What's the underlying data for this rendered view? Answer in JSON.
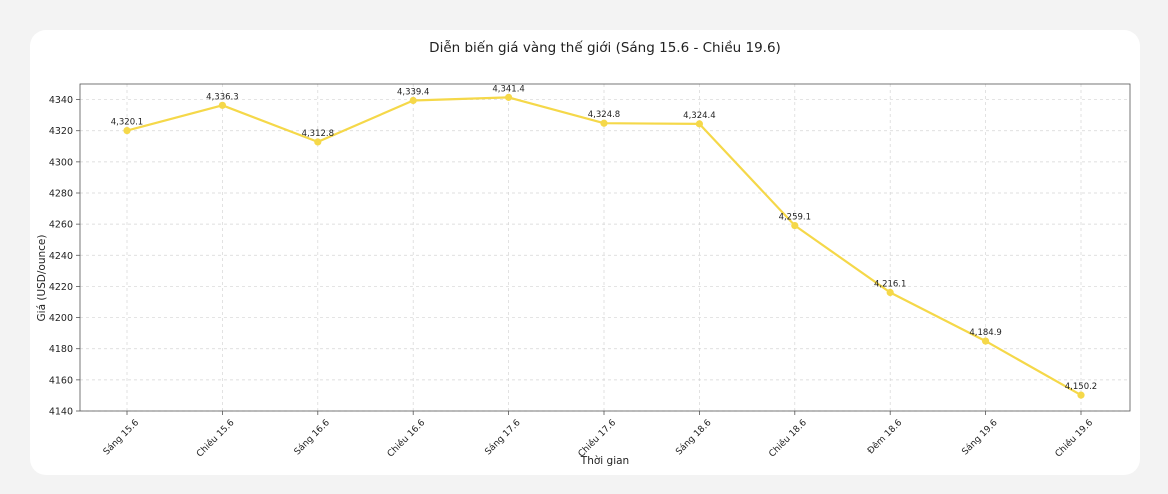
{
  "chart_data": {
    "type": "line",
    "title": "Diễn biến giá vàng thế giới (Sáng 15.6 - Chiều 19.6)",
    "xlabel": "Thời gian",
    "ylabel": "Giá (USD/ounce)",
    "categories": [
      "Sáng 15.6",
      "Chiều 15.6",
      "Sáng 16.6",
      "Chiều 16.6",
      "Sáng 17.6",
      "Chiều 17.6",
      "Sáng 18.6",
      "Chiều 18.6",
      "Đêm 18.6",
      "Sáng 19.6",
      "Chiều 19.6"
    ],
    "values": [
      4320.1,
      4336.3,
      4312.8,
      4339.4,
      4341.4,
      4324.8,
      4324.4,
      4259.1,
      4216.1,
      4184.9,
      4150.2
    ],
    "data_labels": [
      "4,320.1",
      "4,336.3",
      "4,312.8",
      "4,339.4",
      "4,341.4",
      "4,324.8",
      "4,324.4",
      "4,259.1",
      "4,216.1",
      "4,184.9",
      "4,150.2"
    ],
    "ylim": [
      4140,
      4350
    ],
    "yticks": [
      4140,
      4160,
      4180,
      4200,
      4220,
      4240,
      4260,
      4280,
      4300,
      4320,
      4340
    ],
    "grid": true,
    "color": "#f5d849"
  }
}
